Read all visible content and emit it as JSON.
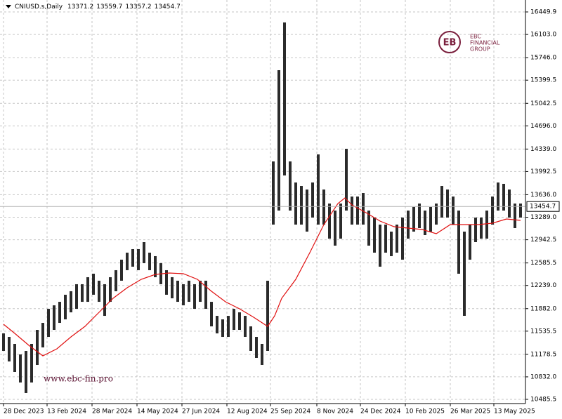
{
  "chart_data": {
    "type": "ohlc",
    "title": "CNIUSD.s,Daily",
    "ohlc_header": [
      13371.2,
      13559.7,
      13357.2,
      13454.7
    ],
    "color": "#2b2b2b",
    "x": [
      0,
      4,
      8,
      12,
      16,
      20,
      24,
      28,
      32,
      36,
      40,
      44,
      48,
      52,
      56,
      60,
      64,
      68,
      72,
      76,
      80,
      84,
      88,
      92,
      96,
      100,
      104,
      108,
      112,
      116,
      120,
      124,
      128,
      132,
      136,
      140,
      144,
      148,
      152,
      156,
      160,
      164,
      168,
      172,
      176,
      180,
      184,
      188,
      192,
      196,
      200,
      204,
      208,
      212,
      216,
      220,
      224,
      228,
      232,
      236,
      240,
      244,
      248,
      252,
      256,
      260,
      264,
      268,
      272,
      276,
      280,
      284,
      288,
      292,
      296,
      300,
      304,
      308,
      312,
      316,
      320,
      324,
      328,
      332,
      336,
      340,
      344,
      348,
      352,
      356,
      360,
      364,
      368
    ],
    "high": [
      11501,
      11447,
      11339,
      11177,
      11231,
      11339,
      11555,
      11663,
      11879,
      11933,
      11987,
      12096,
      12150,
      12258,
      12258,
      12366,
      12420,
      12312,
      12258,
      12366,
      12474,
      12636,
      12744,
      12798,
      12798,
      12906,
      12744,
      12690,
      12582,
      12474,
      12366,
      12312,
      12258,
      12312,
      12258,
      12312,
      12312,
      11987,
      11771,
      11717,
      11771,
      11879,
      11825,
      11771,
      11609,
      11447,
      11339,
      12312,
      14148,
      15553,
      16288,
      14148,
      13824,
      13770,
      13716,
      13824,
      14256,
      13716,
      13500,
      13392,
      13500,
      14343,
      13608,
      13608,
      13662,
      13392,
      13284,
      13176,
      13176,
      13068,
      13176,
      13284,
      13392,
      13446,
      13500,
      13392,
      13446,
      13500,
      13770,
      13716,
      13608,
      13392,
      13068,
      13176,
      13284,
      13284,
      13392,
      13608,
      13824,
      13803,
      13716,
      13500,
      13500
    ],
    "low": [
      11231,
      11069,
      10907,
      10745,
      10583,
      10745,
      11015,
      11285,
      11447,
      11555,
      11663,
      11717,
      11825,
      11879,
      11987,
      11987,
      12096,
      11987,
      11771,
      11987,
      12150,
      12312,
      12474,
      12528,
      12474,
      12582,
      12474,
      12366,
      12258,
      12096,
      12041,
      11987,
      11933,
      11987,
      11879,
      11987,
      11879,
      11609,
      11501,
      11447,
      11447,
      11555,
      11555,
      11447,
      11231,
      11123,
      11015,
      11231,
      13176,
      13392,
      13932,
      13392,
      13176,
      13176,
      13068,
      13284,
      13176,
      13176,
      12960,
      12852,
      12960,
      13392,
      13176,
      13176,
      13176,
      12852,
      12744,
      12528,
      12744,
      12690,
      12744,
      12636,
      12960,
      13068,
      13122,
      13014,
      13068,
      13176,
      13284,
      13284,
      13176,
      12420,
      11771,
      12636,
      12906,
      12960,
      12960,
      13176,
      13392,
      13392,
      13284,
      13122,
      13284
    ],
    "moving_average": {
      "color": "#e01010",
      "x": [
        0,
        8,
        18,
        28,
        38,
        48,
        58,
        68,
        78,
        88,
        98,
        108,
        118,
        128,
        138,
        148,
        158,
        168,
        178,
        188,
        193,
        198,
        208,
        218,
        228,
        238,
        243,
        248,
        258,
        268,
        278,
        288,
        298,
        308,
        318,
        328,
        338,
        348,
        358,
        368
      ],
      "values": [
        11642,
        11501,
        11318,
        11155,
        11263,
        11447,
        11609,
        11825,
        12041,
        12204,
        12333,
        12409,
        12430,
        12420,
        12333,
        12150,
        11987,
        11879,
        11750,
        11609,
        11771,
        12041,
        12333,
        12744,
        13176,
        13500,
        13587,
        13479,
        13360,
        13230,
        13144,
        13122,
        13100,
        13036,
        13176,
        13176,
        13176,
        13198,
        13262,
        13241
      ]
    },
    "last_price": 13454.7,
    "xlim": [
      -2.5,
      371.5
    ],
    "xticks": [
      {
        "value": 0,
        "label": "28 Dec 2023"
      },
      {
        "value": 31,
        "label": "13 Feb 2024"
      },
      {
        "value": 63,
        "label": "28 Mar 2024"
      },
      {
        "value": 95,
        "label": "14 May 2024"
      },
      {
        "value": 127,
        "label": "27 Jun 2024"
      },
      {
        "value": 159,
        "label": "12 Aug 2024"
      },
      {
        "value": 190,
        "label": "25 Sep 2024"
      },
      {
        "value": 223,
        "label": "8 Nov 2024"
      },
      {
        "value": 254,
        "label": "24 Dec 2024"
      },
      {
        "value": 286,
        "label": "10 Feb 2025"
      },
      {
        "value": 318,
        "label": "26 Mar 2025"
      },
      {
        "value": 349,
        "label": "13 May 2025"
      }
    ],
    "ylim": [
      10420.7,
      16633.6
    ],
    "yticks": [
      16449.9,
      {
        "value": 16103,
        "label": "16103.0"
      },
      {
        "value": 15746,
        "label": "15746.0"
      },
      15399.5,
      15042.5,
      {
        "value": 14696,
        "label": "14696.0"
      },
      {
        "value": 14339,
        "label": "14339.0"
      },
      13992.5,
      {
        "value": 13636,
        "label": "13636.0"
      },
      {
        "value": 13289,
        "label": "13289.0"
      },
      12942.5,
      12585.5,
      {
        "value": 12239,
        "label": "12239.0"
      },
      {
        "value": 11882,
        "label": "11882.0"
      },
      11535.5,
      11178.5,
      {
        "value": 10832,
        "label": "10832.0"
      },
      10485.5
    ],
    "grid": true,
    "watermark": "www.ebc-fin.pro"
  },
  "logo": {
    "name": "EBC",
    "line1": "FINANCIAL",
    "line2": "GROUP"
  }
}
